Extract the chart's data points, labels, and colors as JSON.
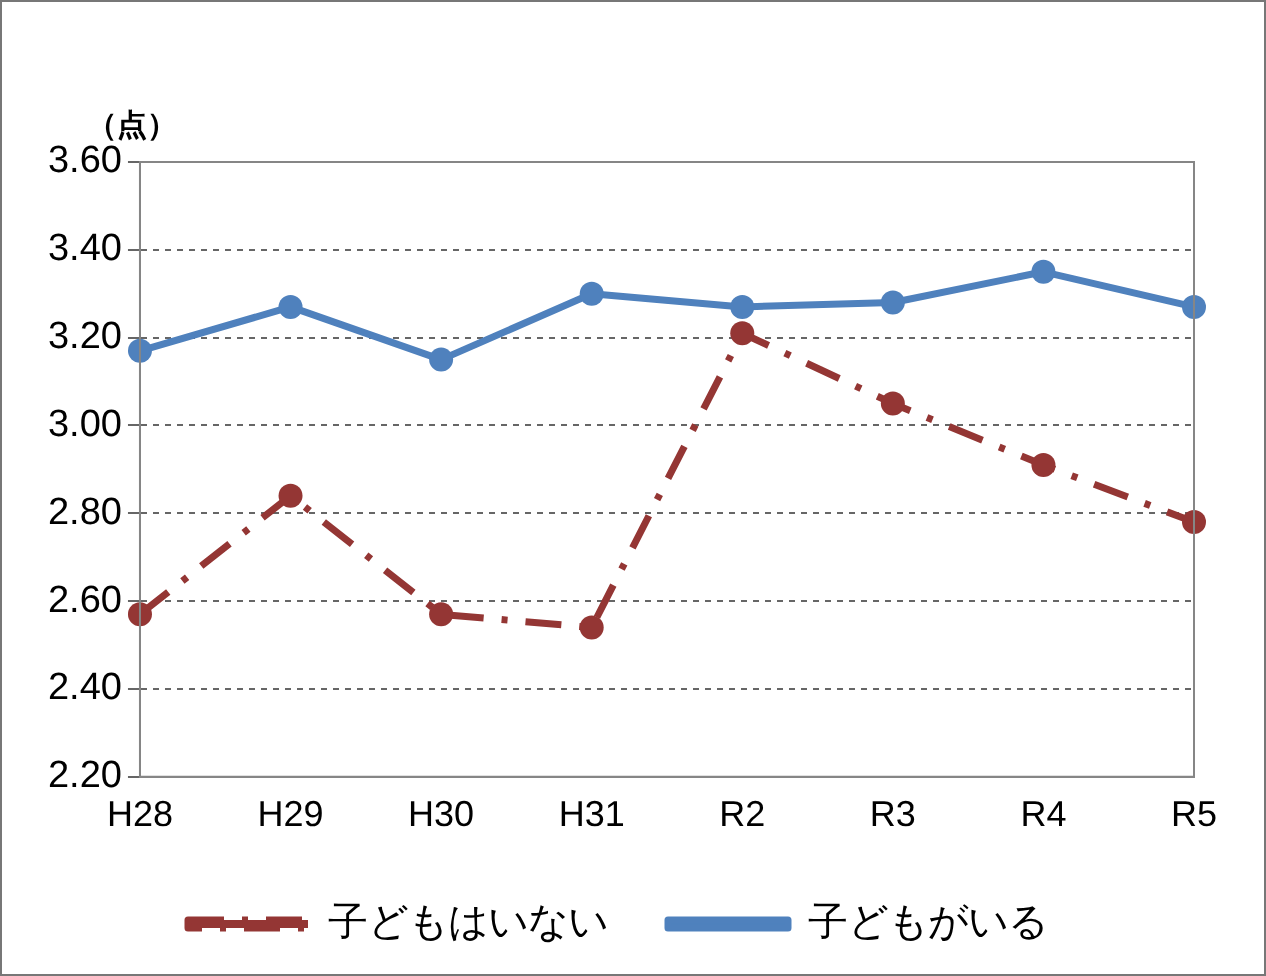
{
  "chart_data": {
    "type": "line",
    "ylabel": "（点）",
    "categories": [
      "H28",
      "H29",
      "H30",
      "H31",
      "R2",
      "R3",
      "R4",
      "R5"
    ],
    "series": [
      {
        "name": "子どもはいない",
        "color": "#943634",
        "line_style": "dashed",
        "values": [
          2.57,
          2.84,
          2.57,
          2.54,
          3.21,
          3.05,
          2.91,
          2.78
        ]
      },
      {
        "name": "子どもがいる",
        "color": "#4f81bd",
        "line_style": "solid",
        "values": [
          3.17,
          3.27,
          3.15,
          3.3,
          3.27,
          3.28,
          3.35,
          3.27
        ]
      }
    ],
    "ylim": [
      2.2,
      3.6
    ],
    "yticks": [
      {
        "value": 2.2,
        "label": "2.20"
      },
      {
        "value": 2.4,
        "label": "2.40"
      },
      {
        "value": 2.6,
        "label": "2.60"
      },
      {
        "value": 2.8,
        "label": "2.80"
      },
      {
        "value": 3.0,
        "label": "3.00"
      },
      {
        "value": 3.2,
        "label": "3.20"
      },
      {
        "value": 3.4,
        "label": "3.40"
      },
      {
        "value": 3.6,
        "label": "3.60"
      }
    ],
    "grid": "y",
    "legend": "bottom",
    "marker": "circle"
  }
}
